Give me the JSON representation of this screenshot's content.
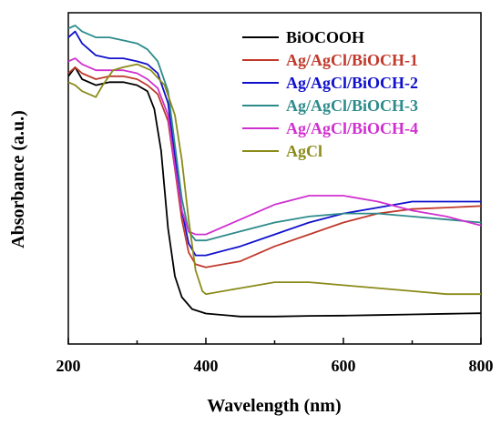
{
  "chart_data": {
    "type": "line",
    "title": "",
    "xlabel": "Wavelength (nm)",
    "ylabel": "Absorbance (a.u.)",
    "xlim": [
      200,
      800
    ],
    "ylim": [
      0,
      1
    ],
    "xticks": [
      "200",
      "400",
      "600",
      "800"
    ],
    "yticks_shown": false,
    "grid": false,
    "legend": "top-right",
    "series": [
      {
        "name": "BiOCOOH",
        "color": "#000000",
        "points": [
          [
            200,
            0.83
          ],
          [
            210,
            0.86
          ],
          [
            220,
            0.82
          ],
          [
            240,
            0.8
          ],
          [
            260,
            0.81
          ],
          [
            280,
            0.81
          ],
          [
            300,
            0.8
          ],
          [
            315,
            0.78
          ],
          [
            325,
            0.72
          ],
          [
            335,
            0.58
          ],
          [
            345,
            0.32
          ],
          [
            355,
            0.16
          ],
          [
            365,
            0.09
          ],
          [
            380,
            0.05
          ],
          [
            400,
            0.035
          ],
          [
            450,
            0.025
          ],
          [
            500,
            0.025
          ],
          [
            550,
            0.027
          ],
          [
            600,
            0.028
          ],
          [
            650,
            0.03
          ],
          [
            700,
            0.032
          ],
          [
            750,
            0.034
          ],
          [
            800,
            0.036
          ]
        ]
      },
      {
        "name": "Ag/AgCl/BiOCH-1",
        "color": "#c0392b",
        "points": [
          [
            200,
            0.84
          ],
          [
            210,
            0.86
          ],
          [
            220,
            0.84
          ],
          [
            240,
            0.82
          ],
          [
            260,
            0.83
          ],
          [
            280,
            0.83
          ],
          [
            300,
            0.82
          ],
          [
            315,
            0.8
          ],
          [
            330,
            0.77
          ],
          [
            345,
            0.68
          ],
          [
            355,
            0.52
          ],
          [
            365,
            0.35
          ],
          [
            375,
            0.24
          ],
          [
            385,
            0.2
          ],
          [
            400,
            0.19
          ],
          [
            450,
            0.21
          ],
          [
            500,
            0.26
          ],
          [
            550,
            0.3
          ],
          [
            600,
            0.34
          ],
          [
            650,
            0.37
          ],
          [
            700,
            0.385
          ],
          [
            750,
            0.39
          ],
          [
            800,
            0.395
          ]
        ]
      },
      {
        "name": "Ag/AgCl/BiOCH-2",
        "color": "#1010cc",
        "points": [
          [
            200,
            0.96
          ],
          [
            210,
            0.98
          ],
          [
            220,
            0.94
          ],
          [
            240,
            0.9
          ],
          [
            260,
            0.89
          ],
          [
            280,
            0.89
          ],
          [
            300,
            0.88
          ],
          [
            315,
            0.87
          ],
          [
            330,
            0.84
          ],
          [
            345,
            0.74
          ],
          [
            355,
            0.56
          ],
          [
            365,
            0.38
          ],
          [
            375,
            0.27
          ],
          [
            385,
            0.23
          ],
          [
            400,
            0.23
          ],
          [
            450,
            0.26
          ],
          [
            500,
            0.3
          ],
          [
            550,
            0.34
          ],
          [
            600,
            0.37
          ],
          [
            650,
            0.39
          ],
          [
            700,
            0.41
          ],
          [
            750,
            0.41
          ],
          [
            800,
            0.41
          ]
        ]
      },
      {
        "name": "Ag/AgCl/BiOCH-3",
        "color": "#2e8b8b",
        "points": [
          [
            200,
            0.99
          ],
          [
            210,
            1.0
          ],
          [
            220,
            0.98
          ],
          [
            240,
            0.96
          ],
          [
            260,
            0.96
          ],
          [
            280,
            0.95
          ],
          [
            300,
            0.94
          ],
          [
            315,
            0.92
          ],
          [
            330,
            0.88
          ],
          [
            345,
            0.78
          ],
          [
            355,
            0.6
          ],
          [
            365,
            0.42
          ],
          [
            375,
            0.31
          ],
          [
            385,
            0.28
          ],
          [
            400,
            0.28
          ],
          [
            450,
            0.31
          ],
          [
            500,
            0.34
          ],
          [
            550,
            0.36
          ],
          [
            600,
            0.37
          ],
          [
            650,
            0.37
          ],
          [
            700,
            0.36
          ],
          [
            750,
            0.35
          ],
          [
            800,
            0.34
          ]
        ]
      },
      {
        "name": "Ag/AgCl/BiOCH-4",
        "color": "#d030d0",
        "points": [
          [
            200,
            0.88
          ],
          [
            210,
            0.89
          ],
          [
            220,
            0.87
          ],
          [
            240,
            0.85
          ],
          [
            260,
            0.85
          ],
          [
            280,
            0.85
          ],
          [
            300,
            0.84
          ],
          [
            315,
            0.82
          ],
          [
            330,
            0.79
          ],
          [
            345,
            0.7
          ],
          [
            355,
            0.53
          ],
          [
            365,
            0.38
          ],
          [
            375,
            0.31
          ],
          [
            385,
            0.3
          ],
          [
            400,
            0.3
          ],
          [
            450,
            0.35
          ],
          [
            500,
            0.4
          ],
          [
            550,
            0.43
          ],
          [
            600,
            0.43
          ],
          [
            650,
            0.41
          ],
          [
            700,
            0.38
          ],
          [
            750,
            0.36
          ],
          [
            800,
            0.33
          ]
        ]
      },
      {
        "name": "AgCl",
        "color": "#8b8b1a",
        "points": [
          [
            200,
            0.81
          ],
          [
            210,
            0.8
          ],
          [
            220,
            0.78
          ],
          [
            240,
            0.76
          ],
          [
            250,
            0.8
          ],
          [
            265,
            0.85
          ],
          [
            280,
            0.86
          ],
          [
            300,
            0.87
          ],
          [
            320,
            0.85
          ],
          [
            340,
            0.8
          ],
          [
            355,
            0.7
          ],
          [
            365,
            0.55
          ],
          [
            375,
            0.35
          ],
          [
            385,
            0.18
          ],
          [
            395,
            0.11
          ],
          [
            400,
            0.1
          ],
          [
            450,
            0.12
          ],
          [
            500,
            0.14
          ],
          [
            550,
            0.14
          ],
          [
            600,
            0.13
          ],
          [
            650,
            0.12
          ],
          [
            700,
            0.11
          ],
          [
            750,
            0.1
          ],
          [
            800,
            0.1
          ]
        ]
      }
    ]
  }
}
